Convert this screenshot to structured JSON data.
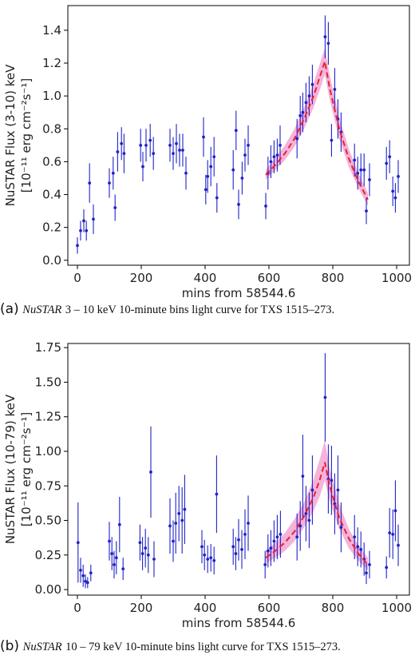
{
  "chart_data": [
    {
      "type": "scatter",
      "panel_letter": "(a)",
      "caption_instrument": "NuSTAR",
      "caption_text": "3 – 10 keV 10-minute bins light curve for TXS 1515–273.",
      "ylabel_line1": "NuSTAR Flux (3-10) keV",
      "ylabel_line2": "[10⁻¹¹ erg cm⁻²s⁻¹]",
      "xlabel": "mins from 58544.6",
      "xlim": [
        -30,
        1040
      ],
      "ylim": [
        -0.03,
        1.55
      ],
      "xticks": [
        0,
        200,
        400,
        600,
        800,
        1000
      ],
      "yticks": [
        0.0,
        0.2,
        0.4,
        0.6,
        0.8,
        1.0,
        1.2,
        1.4
      ],
      "point_color": "#1f22c8",
      "fit_color": "#e8232d",
      "band_color": "#f29ad0",
      "points": [
        {
          "x": 0,
          "y": 0.09,
          "err": 0.05
        },
        {
          "x": 10,
          "y": 0.18,
          "err": 0.06
        },
        {
          "x": 20,
          "y": 0.24,
          "err": 0.07
        },
        {
          "x": 28,
          "y": 0.18,
          "err": 0.06
        },
        {
          "x": 38,
          "y": 0.47,
          "err": 0.12
        },
        {
          "x": 50,
          "y": 0.25,
          "err": 0.09
        },
        {
          "x": 100,
          "y": 0.47,
          "err": 0.09
        },
        {
          "x": 112,
          "y": 0.53,
          "err": 0.1
        },
        {
          "x": 118,
          "y": 0.32,
          "err": 0.08
        },
        {
          "x": 126,
          "y": 0.66,
          "err": 0.12
        },
        {
          "x": 138,
          "y": 0.71,
          "err": 0.1
        },
        {
          "x": 146,
          "y": 0.65,
          "err": 0.12
        },
        {
          "x": 198,
          "y": 0.7,
          "err": 0.1
        },
        {
          "x": 205,
          "y": 0.57,
          "err": 0.09
        },
        {
          "x": 215,
          "y": 0.7,
          "err": 0.1
        },
        {
          "x": 228,
          "y": 0.73,
          "err": 0.1
        },
        {
          "x": 238,
          "y": 0.65,
          "err": 0.1
        },
        {
          "x": 290,
          "y": 0.7,
          "err": 0.1
        },
        {
          "x": 300,
          "y": 0.65,
          "err": 0.1
        },
        {
          "x": 310,
          "y": 0.71,
          "err": 0.12
        },
        {
          "x": 320,
          "y": 0.67,
          "err": 0.1
        },
        {
          "x": 330,
          "y": 0.67,
          "err": 0.1
        },
        {
          "x": 340,
          "y": 0.53,
          "err": 0.1
        },
        {
          "x": 395,
          "y": 0.75,
          "err": 0.12
        },
        {
          "x": 402,
          "y": 0.43,
          "err": 0.09
        },
        {
          "x": 408,
          "y": 0.51,
          "err": 0.1
        },
        {
          "x": 418,
          "y": 0.57,
          "err": 0.12
        },
        {
          "x": 428,
          "y": 0.63,
          "err": 0.12
        },
        {
          "x": 437,
          "y": 0.38,
          "err": 0.09
        },
        {
          "x": 488,
          "y": 0.55,
          "err": 0.12
        },
        {
          "x": 497,
          "y": 0.79,
          "err": 0.12
        },
        {
          "x": 505,
          "y": 0.34,
          "err": 0.09
        },
        {
          "x": 516,
          "y": 0.5,
          "err": 0.1
        },
        {
          "x": 525,
          "y": 0.64,
          "err": 0.1
        },
        {
          "x": 535,
          "y": 0.7,
          "err": 0.12
        },
        {
          "x": 590,
          "y": 0.33,
          "err": 0.08
        },
        {
          "x": 597,
          "y": 0.53,
          "err": 0.1
        },
        {
          "x": 606,
          "y": 0.6,
          "err": 0.1
        },
        {
          "x": 616,
          "y": 0.63,
          "err": 0.1
        },
        {
          "x": 626,
          "y": 0.64,
          "err": 0.1
        },
        {
          "x": 635,
          "y": 0.7,
          "err": 0.12
        },
        {
          "x": 688,
          "y": 0.74,
          "err": 0.12
        },
        {
          "x": 698,
          "y": 0.88,
          "err": 0.12
        },
        {
          "x": 706,
          "y": 0.9,
          "err": 0.12
        },
        {
          "x": 716,
          "y": 0.96,
          "err": 0.12
        },
        {
          "x": 726,
          "y": 1.0,
          "err": 0.12
        },
        {
          "x": 736,
          "y": 1.07,
          "err": 0.12
        },
        {
          "x": 776,
          "y": 1.36,
          "err": 0.13
        },
        {
          "x": 786,
          "y": 1.32,
          "err": 0.13
        },
        {
          "x": 796,
          "y": 0.73,
          "err": 0.1
        },
        {
          "x": 806,
          "y": 1.04,
          "err": 0.13
        },
        {
          "x": 816,
          "y": 0.86,
          "err": 0.12
        },
        {
          "x": 826,
          "y": 0.78,
          "err": 0.12
        },
        {
          "x": 868,
          "y": 0.61,
          "err": 0.1
        },
        {
          "x": 878,
          "y": 0.53,
          "err": 0.1
        },
        {
          "x": 888,
          "y": 0.55,
          "err": 0.1
        },
        {
          "x": 898,
          "y": 0.55,
          "err": 0.1
        },
        {
          "x": 905,
          "y": 0.3,
          "err": 0.08
        },
        {
          "x": 915,
          "y": 0.49,
          "err": 0.1
        },
        {
          "x": 968,
          "y": 0.59,
          "err": 0.1
        },
        {
          "x": 978,
          "y": 0.63,
          "err": 0.1
        },
        {
          "x": 988,
          "y": 0.42,
          "err": 0.09
        },
        {
          "x": 996,
          "y": 0.38,
          "err": 0.09
        },
        {
          "x": 1005,
          "y": 0.51,
          "err": 0.1
        }
      ],
      "fit": {
        "x": [
          590,
          620,
          650,
          680,
          710,
          740,
          760,
          775,
          790,
          820,
          850,
          880,
          910
        ],
        "y": [
          0.52,
          0.58,
          0.65,
          0.74,
          0.86,
          1.0,
          1.12,
          1.21,
          1.05,
          0.8,
          0.62,
          0.48,
          0.37
        ],
        "lower": [
          0.49,
          0.55,
          0.61,
          0.69,
          0.8,
          0.93,
          1.04,
          1.13,
          0.98,
          0.74,
          0.57,
          0.44,
          0.33
        ],
        "upper": [
          0.55,
          0.62,
          0.7,
          0.8,
          0.93,
          1.08,
          1.2,
          1.29,
          1.13,
          0.87,
          0.68,
          0.53,
          0.41
        ]
      }
    },
    {
      "type": "scatter",
      "panel_letter": "(b)",
      "caption_instrument": "NuSTAR",
      "caption_text": "10 – 79 keV 10-minute bins light curve for TXS 1515–273.",
      "ylabel_line1": "NuSTAR Flux (10-79) keV",
      "ylabel_line2": "[10⁻¹¹ erg cm⁻²s⁻¹]",
      "xlabel": "mins from 58544.6",
      "xlim": [
        -30,
        1040
      ],
      "ylim": [
        -0.04,
        1.78
      ],
      "xticks": [
        0,
        200,
        400,
        600,
        800,
        1000
      ],
      "yticks": [
        0.0,
        0.25,
        0.5,
        0.75,
        1.0,
        1.25,
        1.5,
        1.75
      ],
      "point_color": "#1f22c8",
      "fit_color": "#e8232d",
      "band_color": "#f29ad0",
      "points": [
        {
          "x": 2,
          "y": 0.34,
          "err": 0.29
        },
        {
          "x": 10,
          "y": 0.14,
          "err": 0.09
        },
        {
          "x": 18,
          "y": 0.1,
          "err": 0.08
        },
        {
          "x": 25,
          "y": 0.06,
          "err": 0.05
        },
        {
          "x": 32,
          "y": 0.05,
          "err": 0.04
        },
        {
          "x": 42,
          "y": 0.12,
          "err": 0.06
        },
        {
          "x": 100,
          "y": 0.35,
          "err": 0.14
        },
        {
          "x": 108,
          "y": 0.26,
          "err": 0.12
        },
        {
          "x": 115,
          "y": 0.18,
          "err": 0.1
        },
        {
          "x": 122,
          "y": 0.23,
          "err": 0.12
        },
        {
          "x": 132,
          "y": 0.47,
          "err": 0.2
        },
        {
          "x": 143,
          "y": 0.15,
          "err": 0.08
        },
        {
          "x": 196,
          "y": 0.34,
          "err": 0.13
        },
        {
          "x": 204,
          "y": 0.26,
          "err": 0.12
        },
        {
          "x": 213,
          "y": 0.3,
          "err": 0.14
        },
        {
          "x": 222,
          "y": 0.25,
          "err": 0.13
        },
        {
          "x": 230,
          "y": 0.85,
          "err": 0.33
        },
        {
          "x": 240,
          "y": 0.22,
          "err": 0.13
        },
        {
          "x": 290,
          "y": 0.46,
          "err": 0.2
        },
        {
          "x": 300,
          "y": 0.35,
          "err": 0.15
        },
        {
          "x": 308,
          "y": 0.48,
          "err": 0.22
        },
        {
          "x": 318,
          "y": 0.55,
          "err": 0.2
        },
        {
          "x": 328,
          "y": 0.5,
          "err": 0.24
        },
        {
          "x": 336,
          "y": 0.58,
          "err": 0.25
        },
        {
          "x": 390,
          "y": 0.31,
          "err": 0.12
        },
        {
          "x": 398,
          "y": 0.25,
          "err": 0.11
        },
        {
          "x": 408,
          "y": 0.22,
          "err": 0.1
        },
        {
          "x": 418,
          "y": 0.23,
          "err": 0.1
        },
        {
          "x": 428,
          "y": 0.21,
          "err": 0.1
        },
        {
          "x": 436,
          "y": 0.69,
          "err": 0.28
        },
        {
          "x": 488,
          "y": 0.31,
          "err": 0.13
        },
        {
          "x": 496,
          "y": 0.26,
          "err": 0.12
        },
        {
          "x": 505,
          "y": 0.36,
          "err": 0.15
        },
        {
          "x": 515,
          "y": 0.29,
          "err": 0.14
        },
        {
          "x": 525,
          "y": 0.4,
          "err": 0.18
        },
        {
          "x": 535,
          "y": 0.48,
          "err": 0.2
        },
        {
          "x": 588,
          "y": 0.18,
          "err": 0.1
        },
        {
          "x": 597,
          "y": 0.28,
          "err": 0.12
        },
        {
          "x": 606,
          "y": 0.3,
          "err": 0.13
        },
        {
          "x": 616,
          "y": 0.35,
          "err": 0.15
        },
        {
          "x": 626,
          "y": 0.38,
          "err": 0.16
        },
        {
          "x": 636,
          "y": 0.4,
          "err": 0.17
        },
        {
          "x": 688,
          "y": 0.38,
          "err": 0.17
        },
        {
          "x": 698,
          "y": 0.46,
          "err": 0.18
        },
        {
          "x": 706,
          "y": 0.82,
          "err": 0.3
        },
        {
          "x": 716,
          "y": 0.55,
          "err": 0.2
        },
        {
          "x": 726,
          "y": 0.5,
          "err": 0.2
        },
        {
          "x": 736,
          "y": 0.72,
          "err": 0.25
        },
        {
          "x": 776,
          "y": 1.39,
          "err": 0.32
        },
        {
          "x": 786,
          "y": 0.8,
          "err": 0.25
        },
        {
          "x": 796,
          "y": 0.79,
          "err": 0.25
        },
        {
          "x": 806,
          "y": 0.62,
          "err": 0.22
        },
        {
          "x": 816,
          "y": 0.72,
          "err": 0.25
        },
        {
          "x": 826,
          "y": 0.45,
          "err": 0.18
        },
        {
          "x": 868,
          "y": 0.38,
          "err": 0.16
        },
        {
          "x": 878,
          "y": 0.31,
          "err": 0.14
        },
        {
          "x": 888,
          "y": 0.29,
          "err": 0.13
        },
        {
          "x": 898,
          "y": 0.22,
          "err": 0.12
        },
        {
          "x": 905,
          "y": 0.12,
          "err": 0.08
        },
        {
          "x": 915,
          "y": 0.18,
          "err": 0.1
        },
        {
          "x": 968,
          "y": 0.16,
          "err": 0.08
        },
        {
          "x": 978,
          "y": 0.41,
          "err": 0.18
        },
        {
          "x": 988,
          "y": 0.4,
          "err": 0.18
        },
        {
          "x": 996,
          "y": 0.57,
          "err": 0.22
        },
        {
          "x": 1005,
          "y": 0.32,
          "err": 0.15
        }
      ],
      "fit": {
        "x": [
          590,
          620,
          650,
          680,
          710,
          740,
          760,
          775,
          790,
          820,
          850,
          880,
          910
        ],
        "y": [
          0.23,
          0.28,
          0.34,
          0.42,
          0.53,
          0.67,
          0.8,
          0.92,
          0.75,
          0.52,
          0.37,
          0.26,
          0.18
        ],
        "lower": [
          0.19,
          0.23,
          0.28,
          0.35,
          0.45,
          0.57,
          0.68,
          0.79,
          0.64,
          0.44,
          0.3,
          0.21,
          0.14
        ],
        "upper": [
          0.28,
          0.34,
          0.41,
          0.51,
          0.63,
          0.8,
          0.95,
          1.08,
          0.88,
          0.62,
          0.44,
          0.32,
          0.23
        ]
      }
    }
  ]
}
